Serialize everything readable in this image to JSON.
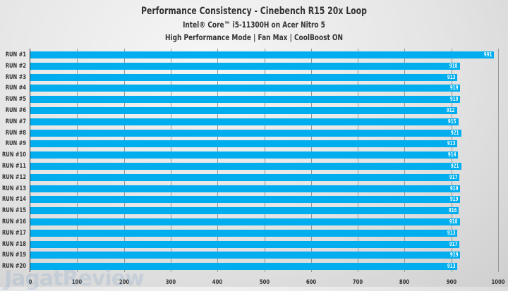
{
  "chart_data": {
    "type": "bar",
    "orientation": "horizontal",
    "title": "Performance Consistency - Cinebench R15 20x Loop",
    "subtitle": [
      "Intel® Core™ i5-11300H on Acer Nitro 5",
      "High Performance Mode | Fan Max | CoolBoost ON"
    ],
    "xlabel": "",
    "ylabel": "",
    "xlim": [
      0,
      1000
    ],
    "xticks": [
      0,
      100,
      200,
      300,
      400,
      500,
      600,
      700,
      800,
      900,
      1000
    ],
    "grid": "vertical",
    "legend": null,
    "bar_color": "#00aeef",
    "categories": [
      "RUN #1",
      "RUN #2",
      "RUN #3",
      "RUN #4",
      "RUN #5",
      "RUN #6",
      "RUN #7",
      "RUN #8",
      "RUN #9",
      "RUN #10",
      "RUN #11",
      "RUN #12",
      "RUN #13",
      "RUN #14",
      "RUN #15",
      "RUN #16",
      "RUN #17",
      "RUN #18",
      "RUN #19",
      "RUN #20"
    ],
    "values": [
      991,
      918,
      913,
      919,
      919,
      912,
      915,
      921,
      913,
      914,
      921,
      917,
      919,
      919,
      916,
      918,
      913,
      917,
      919,
      913
    ]
  },
  "watermark": "JagatReview"
}
